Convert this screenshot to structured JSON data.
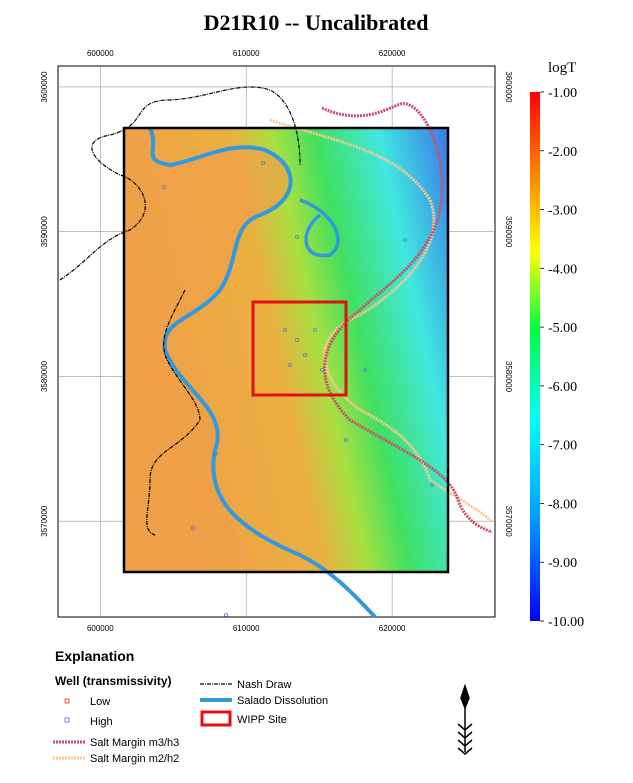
{
  "map": {
    "title": "D21R10 -- Uncalibrated",
    "xlim": [
      597100,
      627050
    ],
    "ylim": [
      3563380,
      3601450
    ],
    "xticks": [
      600000,
      610000,
      620000
    ],
    "yticks": [
      3600000,
      3590000,
      3580000,
      3570000
    ],
    "colorbar": {
      "label": "logT",
      "ticks": [
        {
          "value": -1,
          "label": "-1.00"
        },
        {
          "value": -2,
          "label": "-2.00"
        },
        {
          "value": -3,
          "label": "-3.00"
        },
        {
          "value": -4,
          "label": "-4.00"
        },
        {
          "value": -5,
          "label": "-5.00"
        },
        {
          "value": -6,
          "label": "-6.00"
        },
        {
          "value": -7,
          "label": "-7.00"
        },
        {
          "value": -8,
          "label": "-8.00"
        },
        {
          "value": -9,
          "label": "-9.00"
        },
        {
          "value": -10,
          "label": "-10.00"
        }
      ]
    }
  },
  "legend": {
    "title": "Explanation",
    "well_title": "Well (transmissivity)",
    "low": "Low",
    "high": "High",
    "salt_m3": "Salt Margin m3/h3",
    "salt_m2": "Salt Margin m2/h2",
    "nash": "Nash Draw",
    "salado": "Salado Dissolution",
    "wipp": "WIPP Site"
  }
}
